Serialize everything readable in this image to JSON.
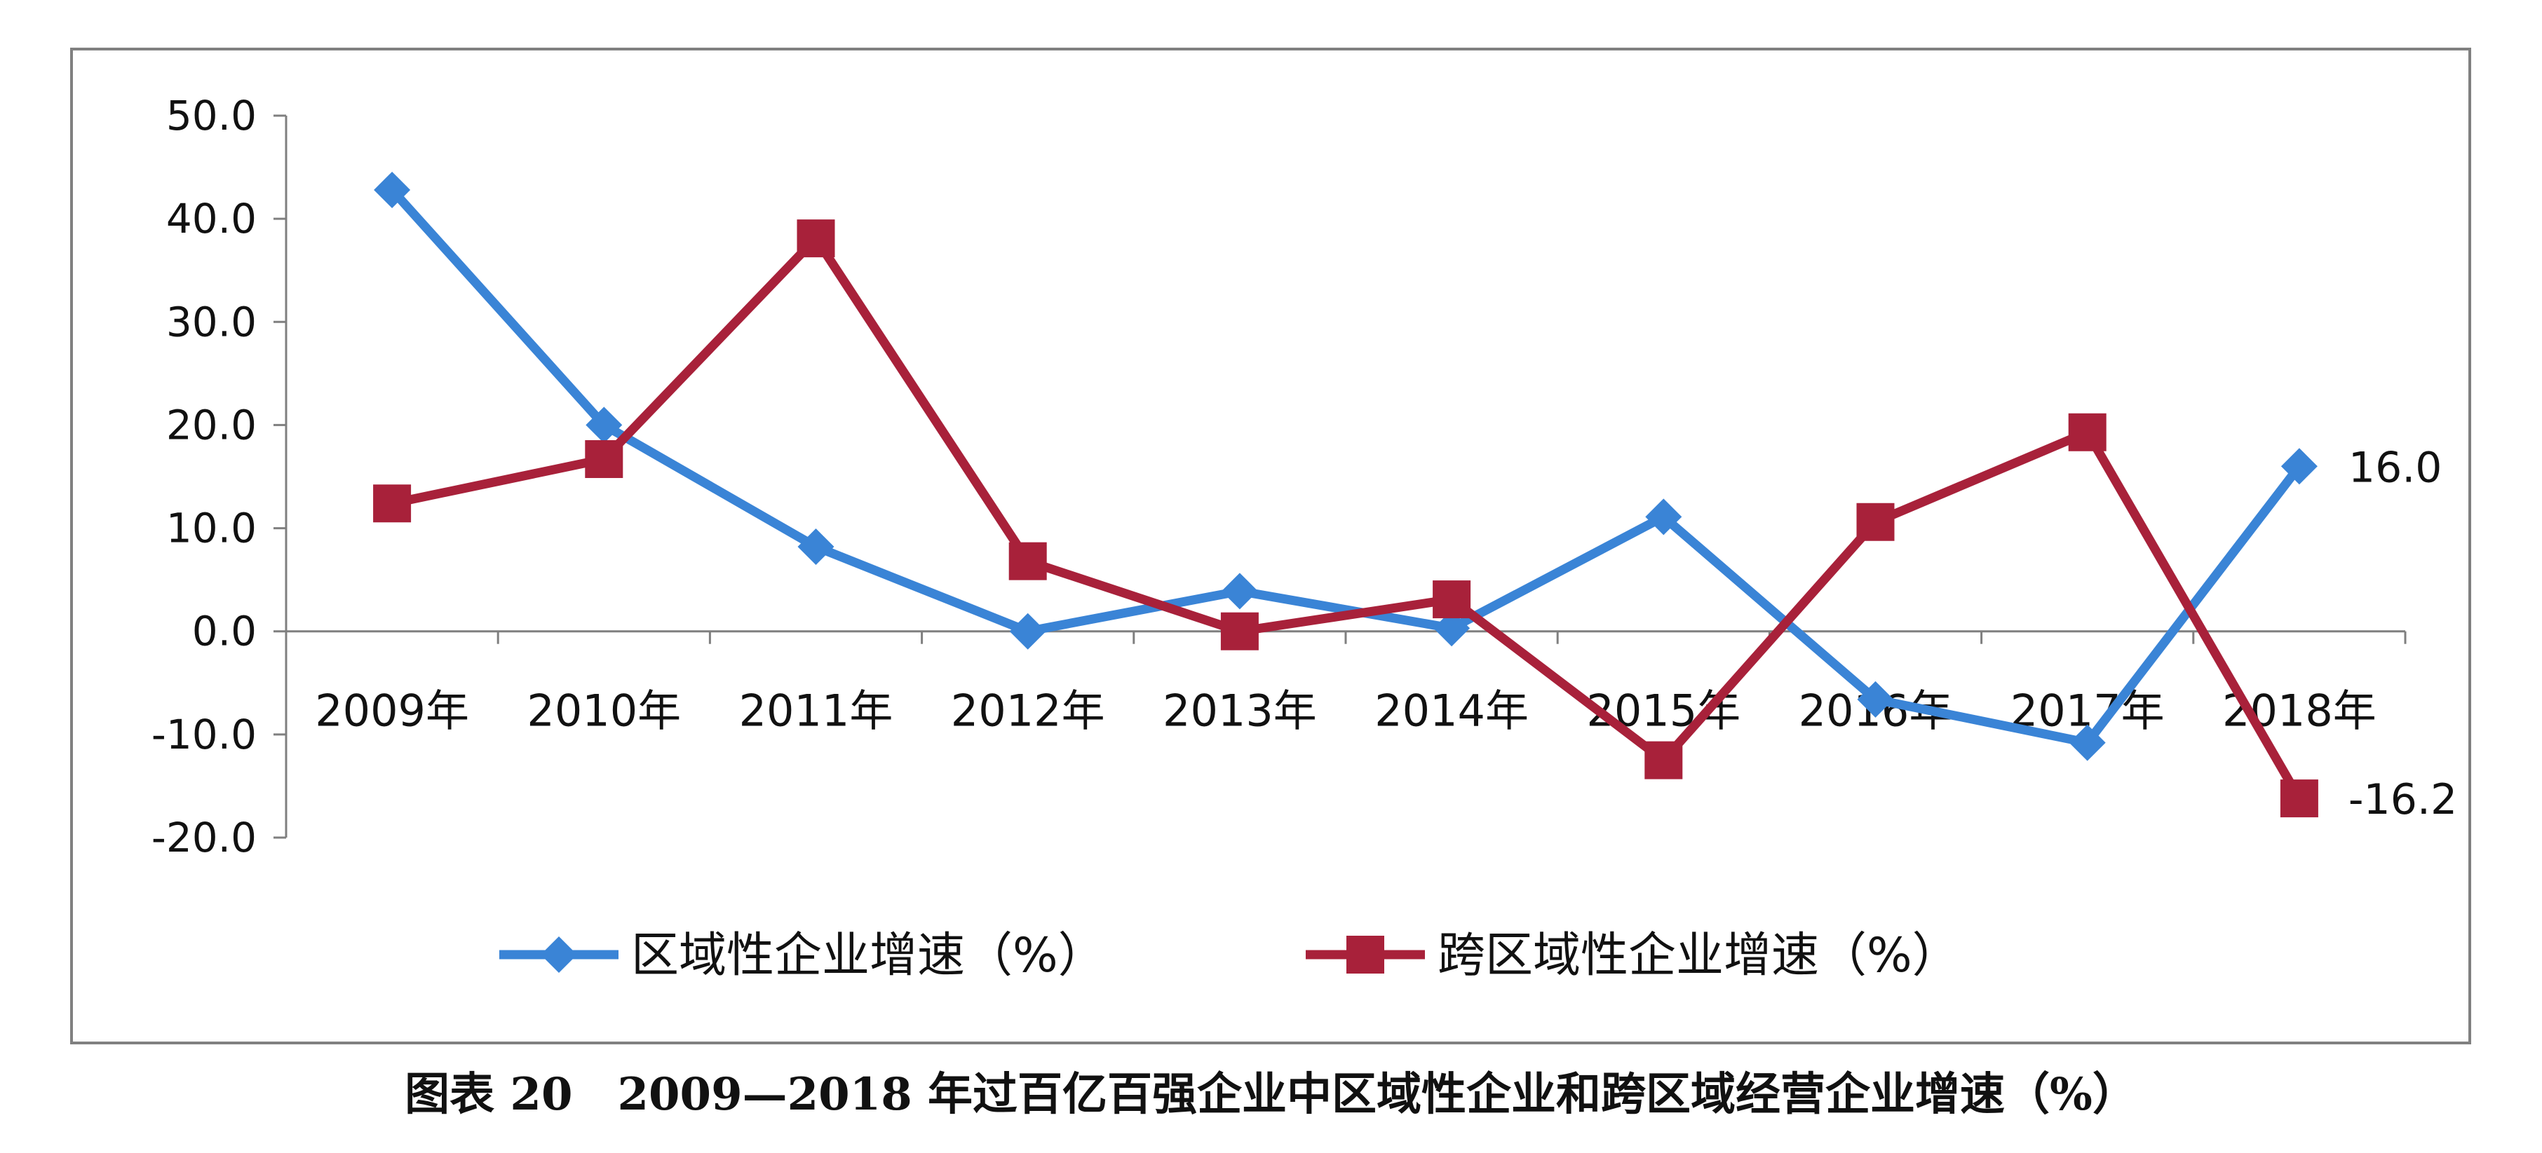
{
  "caption": "图表 20　2009—2018 年过百亿百强企业中区域性企业和跨区域经营企业增速（%）",
  "chart_data": {
    "type": "line",
    "categories": [
      "2009年",
      "2010年",
      "2011年",
      "2012年",
      "2013年",
      "2014年",
      "2015年",
      "2016年",
      "2017年",
      "2018年"
    ],
    "ylim": [
      -20,
      50
    ],
    "yticks": [
      50,
      40,
      30,
      20,
      10,
      0,
      -10,
      -20
    ],
    "ytick_labels": [
      "50.0",
      "40.0",
      "30.0",
      "20.0",
      "10.0",
      "0.0",
      "-10.0",
      "-20.0"
    ],
    "legend_position": "bottom",
    "grid": false,
    "series": [
      {
        "name": "区域性企业增速（%）",
        "color": "#3a84d6",
        "marker": "diamond",
        "values": [
          42.8,
          20.0,
          8.2,
          0.0,
          3.9,
          0.3,
          11.1,
          -6.6,
          -10.8,
          16.0
        ],
        "end_label": "16.0"
      },
      {
        "name": "跨区域性企业增速（%）",
        "color": "#a8213a",
        "marker": "square",
        "values": [
          12.4,
          16.7,
          38.1,
          6.8,
          0.0,
          3.1,
          -12.5,
          10.6,
          19.3,
          -16.2
        ],
        "end_label": "-16.2"
      }
    ]
  }
}
